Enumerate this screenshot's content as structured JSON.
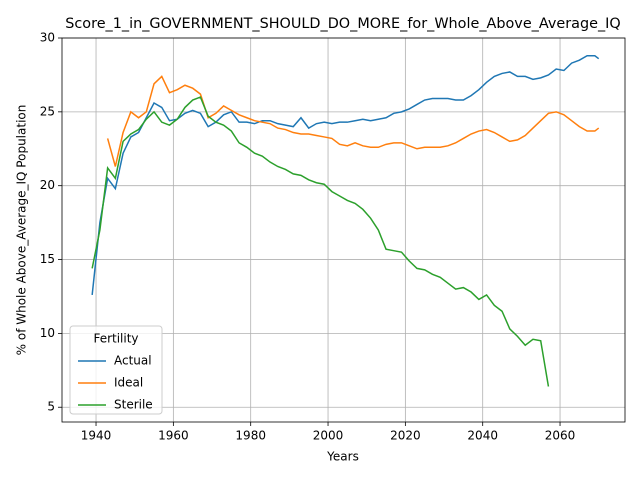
{
  "chart_data": {
    "type": "line",
    "title": "Score_1_in_GOVERNMENT_SHOULD_DO_MORE_for_Whole_Above_Average_IQ",
    "x_label": "Years",
    "y_label": "% of Whole Above_Average_IQ Population",
    "legend_title": "Fertility",
    "legend_position": "lower left",
    "grid": true,
    "xlim": [
      1931.2,
      2076.8
    ],
    "ylim": [
      4.0,
      30.0
    ],
    "xticks": [
      1940,
      1960,
      1980,
      2000,
      2020,
      2040,
      2060
    ],
    "yticks": [
      5,
      10,
      15,
      20,
      25,
      30
    ],
    "x": [
      1939,
      1941,
      1943,
      1945,
      1947,
      1949,
      1951,
      1953,
      1955,
      1957,
      1959,
      1961,
      1963,
      1965,
      1967,
      1969,
      1971,
      1973,
      1975,
      1977,
      1979,
      1981,
      1983,
      1985,
      1987,
      1989,
      1991,
      1993,
      1995,
      1997,
      1999,
      2001,
      2003,
      2005,
      2007,
      2009,
      2011,
      2013,
      2015,
      2017,
      2019,
      2021,
      2023,
      2025,
      2027,
      2029,
      2031,
      2033,
      2035,
      2037,
      2039,
      2041,
      2043,
      2045,
      2047,
      2049,
      2051,
      2053,
      2055,
      2057,
      2059,
      2061,
      2063,
      2065,
      2067,
      2069,
      2070
    ],
    "series": [
      {
        "name": "Actual",
        "color": "#1f77b4",
        "values": [
          12.6,
          17.5,
          20.5,
          19.8,
          22.2,
          23.3,
          23.6,
          24.6,
          25.6,
          25.3,
          24.4,
          24.5,
          24.9,
          25.1,
          24.9,
          24.0,
          24.3,
          24.8,
          25.0,
          24.3,
          24.3,
          24.2,
          24.4,
          24.4,
          24.2,
          24.1,
          24.0,
          24.6,
          23.9,
          24.2,
          24.3,
          24.2,
          24.3,
          24.3,
          24.4,
          24.5,
          24.4,
          24.5,
          24.6,
          24.9,
          25.0,
          25.2,
          25.5,
          25.8,
          25.9,
          25.9,
          25.9,
          25.8,
          25.8,
          26.1,
          26.5,
          27.0,
          27.4,
          27.6,
          27.7,
          27.4,
          27.4,
          27.2,
          27.3,
          27.5,
          27.9,
          27.8,
          28.3,
          28.5,
          28.8,
          28.8,
          28.6
        ]
      },
      {
        "name": "Ideal",
        "color": "#ff7f0e",
        "values": [
          null,
          null,
          23.2,
          21.3,
          23.6,
          25.0,
          24.6,
          25.0,
          26.9,
          27.4,
          26.3,
          26.5,
          26.8,
          26.6,
          26.2,
          24.6,
          24.9,
          25.4,
          25.1,
          24.8,
          24.6,
          24.4,
          24.3,
          24.2,
          23.9,
          23.8,
          23.6,
          23.5,
          23.5,
          23.4,
          23.3,
          23.2,
          22.8,
          22.7,
          22.9,
          22.7,
          22.6,
          22.6,
          22.8,
          22.9,
          22.9,
          22.7,
          22.5,
          22.6,
          22.6,
          22.6,
          22.7,
          22.9,
          23.2,
          23.5,
          23.7,
          23.8,
          23.6,
          23.3,
          23.0,
          23.1,
          23.4,
          23.9,
          24.4,
          24.9,
          25.0,
          24.8,
          24.4,
          24.0,
          23.7,
          23.7,
          23.9
        ]
      },
      {
        "name": "Sterile",
        "color": "#2ca02c",
        "values": [
          14.4,
          17.0,
          21.2,
          20.5,
          23.0,
          23.5,
          23.8,
          24.5,
          25.0,
          24.3,
          24.1,
          24.5,
          25.3,
          25.8,
          26.0,
          24.7,
          24.3,
          24.1,
          23.7,
          22.9,
          22.6,
          22.2,
          22.0,
          21.6,
          21.3,
          21.1,
          20.8,
          20.7,
          20.4,
          20.2,
          20.1,
          19.6,
          19.3,
          19.0,
          18.8,
          18.4,
          17.8,
          17.0,
          15.7,
          15.6,
          15.5,
          14.9,
          14.4,
          14.3,
          14.0,
          13.8,
          13.4,
          13.0,
          13.1,
          12.8,
          12.3,
          12.6,
          11.9,
          11.5,
          10.3,
          9.8,
          9.2,
          9.6,
          9.5,
          6.4,
          null,
          null,
          null,
          null,
          null,
          null,
          null
        ]
      }
    ]
  }
}
